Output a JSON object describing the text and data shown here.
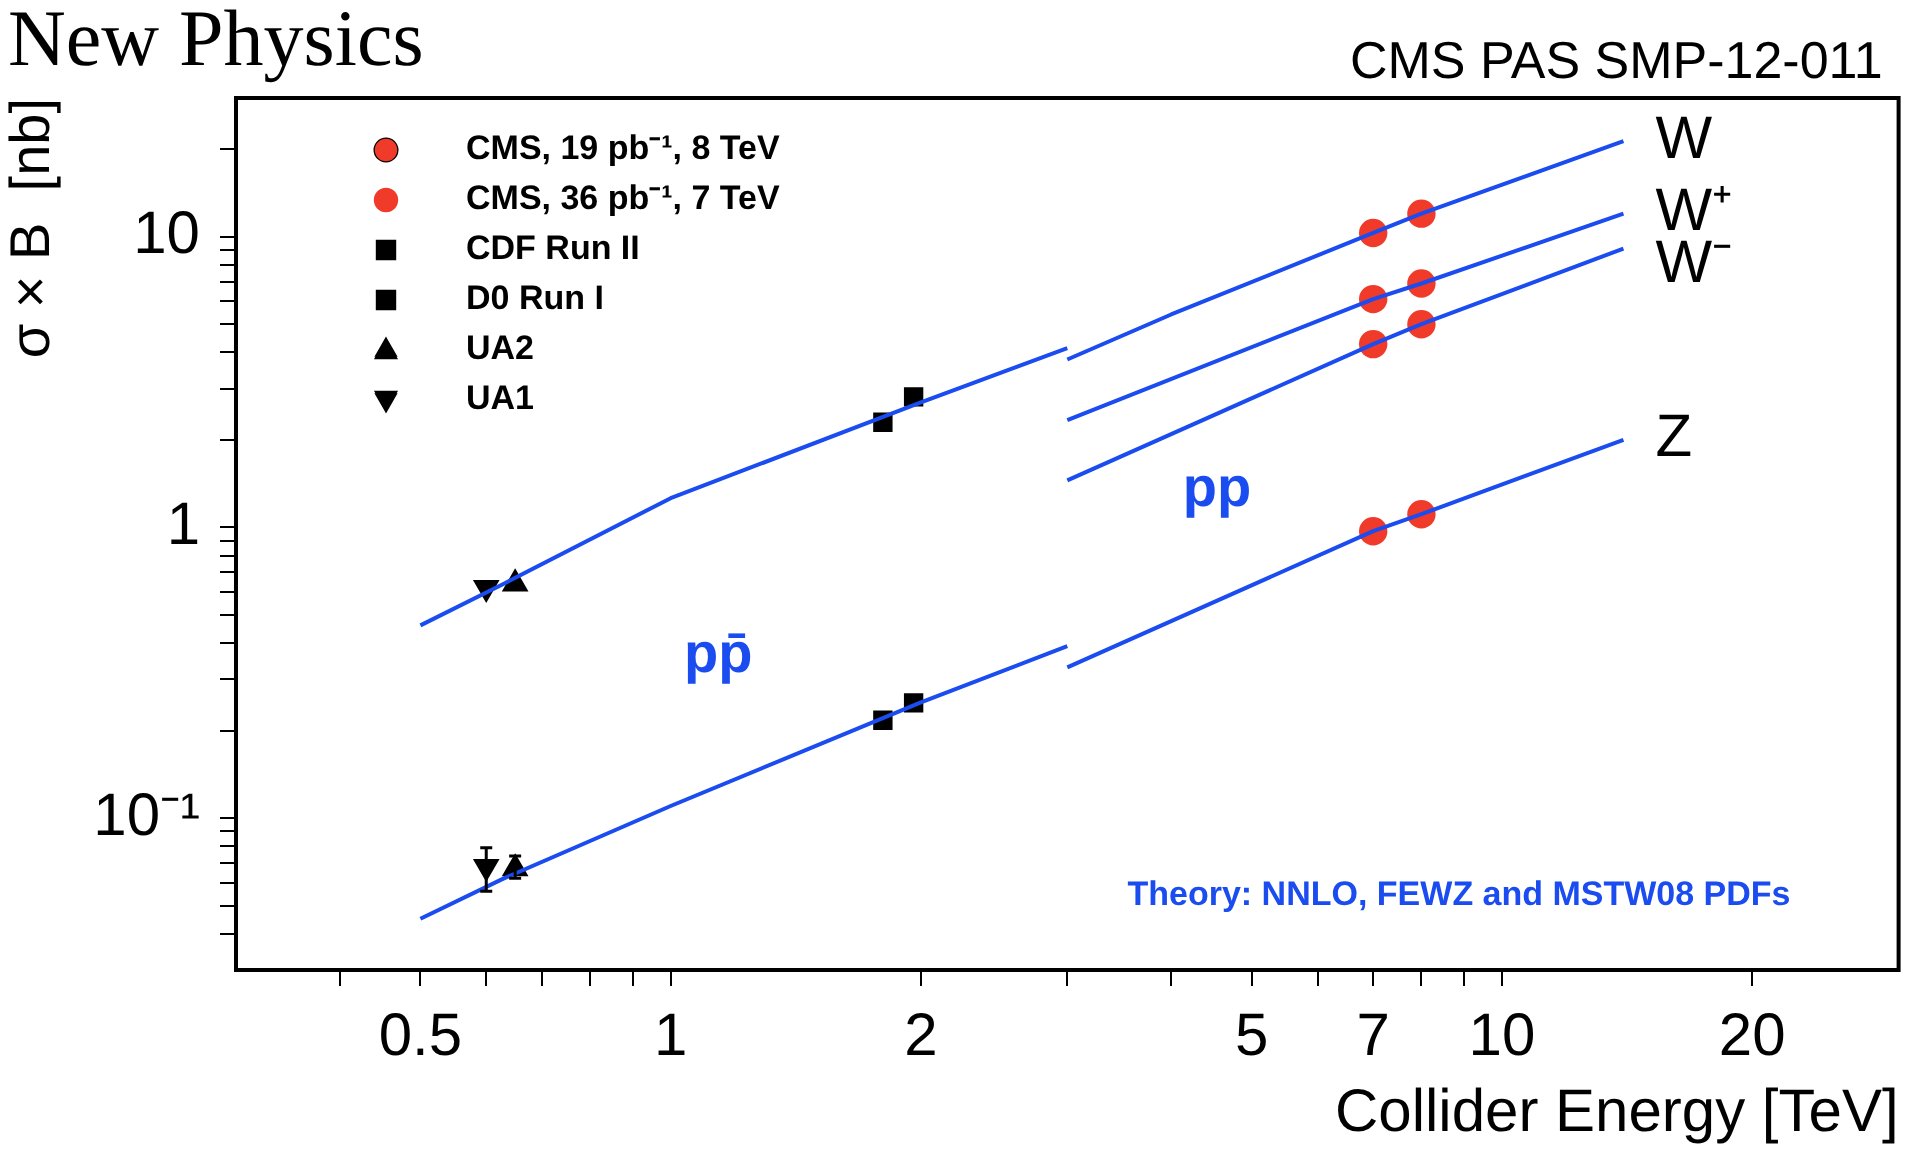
{
  "chart_data": {
    "type": "line",
    "title": "New Physics",
    "subtitle": "CMS PAS SMP-12-011",
    "xlabel": "Collider Energy [TeV]",
    "ylabel": "σ × B  [nb]",
    "log": "xy",
    "grid": false,
    "legend": "top left",
    "line_style": "solid",
    "xlim": [
      0.3,
      30
    ],
    "ylim": [
      0.03,
      30
    ],
    "xticks": [
      {
        "value": 0.4,
        "label": null
      },
      0.5,
      {
        "value": 0.6,
        "label": null
      },
      {
        "value": 0.7,
        "label": null
      },
      {
        "value": 0.8,
        "label": null
      },
      {
        "value": 0.9,
        "label": null
      },
      1,
      2,
      {
        "value": 3,
        "label": null
      },
      {
        "value": 4,
        "label": null
      },
      5,
      {
        "value": 6,
        "label": null
      },
      7,
      {
        "value": 8,
        "label": null
      },
      {
        "value": 9,
        "label": null
      },
      10,
      20
    ],
    "yticks": [
      {
        "value": 0.04,
        "label": null
      },
      {
        "value": 0.05,
        "label": null
      },
      {
        "value": 0.06,
        "label": null
      },
      {
        "value": 0.07,
        "label": null
      },
      {
        "value": 0.08,
        "label": null
      },
      {
        "value": 0.09,
        "label": null
      },
      {
        "value": 0.1,
        "label": "10⁻¹"
      },
      {
        "value": 0.2,
        "label": null
      },
      {
        "value": 0.3,
        "label": null
      },
      {
        "value": 0.4,
        "label": null
      },
      {
        "value": 0.5,
        "label": null
      },
      {
        "value": 0.6,
        "label": null
      },
      {
        "value": 0.7,
        "label": null
      },
      {
        "value": 0.8,
        "label": null
      },
      {
        "value": 0.9,
        "label": null
      },
      1,
      {
        "value": 2,
        "label": null
      },
      {
        "value": 3,
        "label": null
      },
      {
        "value": 4,
        "label": null
      },
      {
        "value": 5,
        "label": null
      },
      {
        "value": 6,
        "label": null
      },
      {
        "value": 7,
        "label": null
      },
      {
        "value": 8,
        "label": null
      },
      {
        "value": 9,
        "label": null
      },
      10,
      {
        "value": 20,
        "label": null
      }
    ],
    "series": [
      {
        "color": "#1a4cf0",
        "x": [
          0.5,
          0.63,
          1,
          2,
          3
        ],
        "values": [
          0.46,
          0.64,
          1.26,
          2.69,
          4.14
        ]
      },
      {
        "color": "#1a4cf0",
        "x": [
          0.5,
          0.63,
          1,
          2,
          3
        ],
        "values": [
          0.045,
          0.062,
          0.11,
          0.25,
          0.39
        ]
      },
      {
        "name": "W",
        "color": "#1a4cf0",
        "x": [
          3,
          4,
          7,
          8,
          14
        ],
        "values": [
          3.78,
          5.4,
          10.3,
          12.0,
          21.3
        ]
      },
      {
        "name": "W⁺",
        "color": "#1a4cf0",
        "x": [
          3,
          7,
          8,
          14
        ],
        "values": [
          2.34,
          6.1,
          6.9,
          12.0
        ]
      },
      {
        "name": "W⁻",
        "color": "#1a4cf0",
        "x": [
          3,
          7,
          8,
          14
        ],
        "values": [
          1.45,
          4.27,
          5.0,
          9.1
        ]
      },
      {
        "name": "Z",
        "color": "#1a4cf0",
        "x": [
          3,
          7,
          8,
          14
        ],
        "values": [
          0.33,
          0.97,
          1.11,
          2.0
        ]
      },
      {
        "type": "scatter",
        "name": "CMS, 19 pb⁻¹, 8 TeV",
        "color": "#f03a2a",
        "marker": "circle",
        "x": [
          8,
          8,
          8,
          8
        ],
        "values": [
          12.0,
          6.9,
          5.0,
          1.11
        ]
      },
      {
        "type": "scatter",
        "name": "CMS, 36 pb⁻¹, 7 TeV",
        "color": "#f03a2a",
        "marker": "circle",
        "x": [
          7,
          7,
          7,
          7
        ],
        "values": [
          10.3,
          6.1,
          4.27,
          0.97
        ]
      },
      {
        "type": "scatter",
        "name": "CDF Run II",
        "color": "#000000",
        "marker": "square",
        "x": [
          1.96,
          1.96
        ],
        "values": [
          2.81,
          0.249
        ]
      },
      {
        "type": "scatter",
        "name": "D0 Run I",
        "color": "#000000",
        "marker": "square",
        "x": [
          1.8,
          1.8
        ],
        "values": [
          2.3,
          0.217
        ]
      },
      {
        "type": "scatter",
        "name": "UA2",
        "color": "#000000",
        "marker": "triangle",
        "x": [
          0.65,
          0.65
        ],
        "values": [
          0.64,
          0.067
        ],
        "errors": [
          null,
          [
            0.062,
            0.074
          ]
        ]
      },
      {
        "type": "scatter",
        "name": "UA1",
        "color": "#000000",
        "marker": "triangle-down",
        "x": [
          0.6,
          0.6
        ],
        "values": [
          0.62,
          0.068
        ],
        "errors": [
          null,
          [
            0.056,
            0.079
          ]
        ]
      }
    ],
    "annotations": [
      "pp̄",
      "pp",
      "Theory: NNLO, FEWZ and MSTW08 PDFs"
    ]
  }
}
